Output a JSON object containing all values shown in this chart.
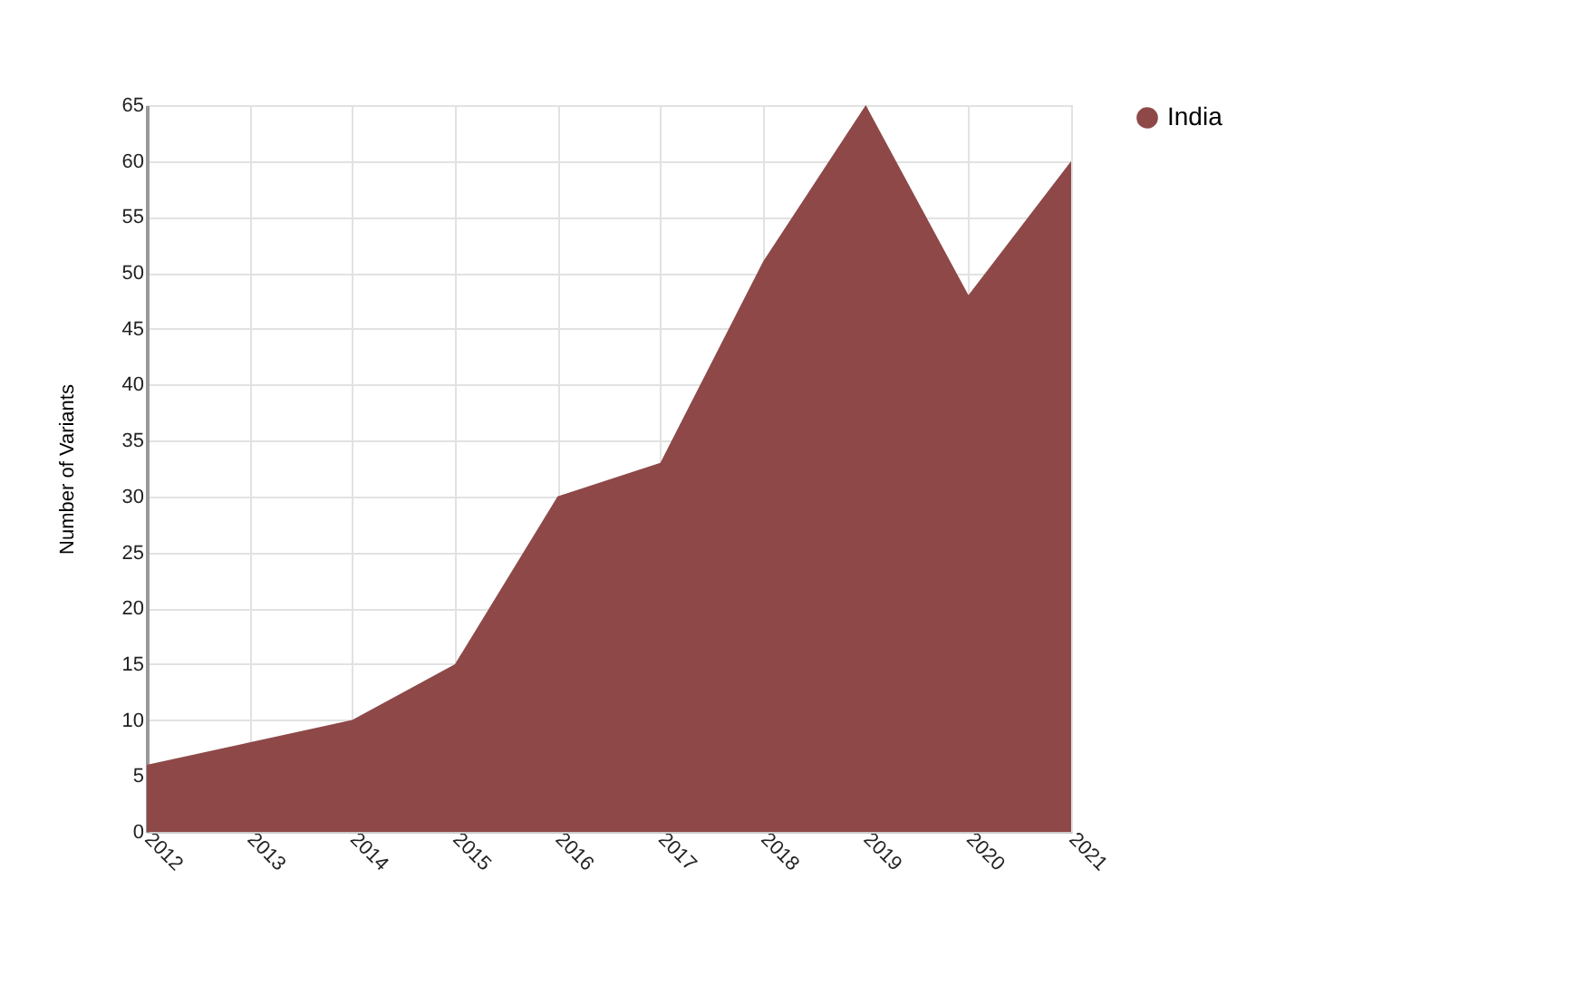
{
  "chart_data": {
    "type": "area",
    "ylabel": "Number of Variants",
    "categories": [
      "2012",
      "2013",
      "2014",
      "2015",
      "2016",
      "2017",
      "2018",
      "2019",
      "2020",
      "2021"
    ],
    "series": [
      {
        "name": "India",
        "color": "#8e4848",
        "values": [
          6,
          8,
          10,
          15,
          30,
          33,
          51,
          65,
          48,
          60
        ]
      }
    ],
    "ylim": [
      0,
      65
    ],
    "yticks": [
      0,
      5,
      10,
      15,
      20,
      25,
      30,
      35,
      40,
      45,
      50,
      55,
      60,
      65
    ],
    "grid": true,
    "legend": "top right"
  }
}
